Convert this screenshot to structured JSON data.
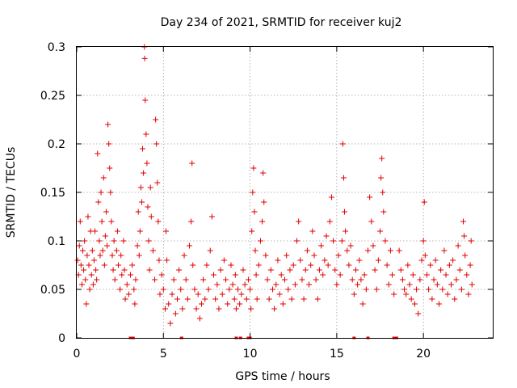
{
  "chart_data": {
    "type": "scatter",
    "title": "Day 234 of 2021, SRMTID for receiver kuj2",
    "xlabel": "GPS time / hours",
    "ylabel": "SRMTID / TECUs",
    "xlim": [
      0,
      24
    ],
    "ylim": [
      0,
      0.3
    ],
    "x_ticks": [
      0,
      5,
      10,
      15,
      20
    ],
    "x_tick_labels": [
      "0",
      "5",
      "10",
      "15",
      "20"
    ],
    "y_ticks": [
      0,
      0.05,
      0.1,
      0.15,
      0.2,
      0.25,
      0.3
    ],
    "y_tick_labels": [
      "0",
      "0.05",
      "0.1",
      "0.15",
      "0.2",
      "0.25",
      "0.3"
    ],
    "grid": true,
    "marker": "plus",
    "color": "#e00000",
    "series": [
      {
        "name": "SRMTID",
        "points": [
          [
            0.05,
            0.08
          ],
          [
            0.1,
            0.065
          ],
          [
            0.15,
            0.095
          ],
          [
            0.2,
            0.12
          ],
          [
            0.25,
            0.075
          ],
          [
            0.3,
            0.055
          ],
          [
            0.35,
            0.09
          ],
          [
            0.4,
            0.07
          ],
          [
            0.45,
            0.1
          ],
          [
            0.5,
            0.06
          ],
          [
            0.55,
            0.035
          ],
          [
            0.6,
            0.085
          ],
          [
            0.65,
            0.125
          ],
          [
            0.7,
            0.075
          ],
          [
            0.75,
            0.05
          ],
          [
            0.8,
            0.11
          ],
          [
            0.85,
            0.065
          ],
          [
            0.9,
            0.09
          ],
          [
            0.95,
            0.055
          ],
          [
            1.0,
            0.08
          ],
          [
            1.05,
            0.11
          ],
          [
            1.1,
            0.07
          ],
          [
            1.15,
            0.06
          ],
          [
            1.2,
            0.19
          ],
          [
            1.25,
            0.14
          ],
          [
            1.3,
            0.1
          ],
          [
            1.35,
            0.085
          ],
          [
            1.4,
            0.15
          ],
          [
            1.45,
            0.12
          ],
          [
            1.5,
            0.09
          ],
          [
            1.55,
            0.165
          ],
          [
            1.6,
            0.075
          ],
          [
            1.65,
            0.105
          ],
          [
            1.7,
            0.13
          ],
          [
            1.75,
            0.095
          ],
          [
            1.8,
            0.22
          ],
          [
            1.85,
            0.2
          ],
          [
            1.9,
            0.175
          ],
          [
            1.95,
            0.15
          ],
          [
            2.0,
            0.12
          ],
          [
            2.05,
            0.085
          ],
          [
            2.1,
            0.07
          ],
          [
            2.15,
            0.1
          ],
          [
            2.2,
            0.06
          ],
          [
            2.3,
            0.09
          ],
          [
            2.35,
            0.11
          ],
          [
            2.4,
            0.075
          ],
          [
            2.5,
            0.05
          ],
          [
            2.55,
            0.085
          ],
          [
            2.6,
            0.065
          ],
          [
            2.7,
            0.1
          ],
          [
            2.75,
            0.07
          ],
          [
            2.8,
            0.04
          ],
          [
            2.9,
            0.055
          ],
          [
            3.0,
            0.045
          ],
          [
            3.1,
            0.065
          ],
          [
            3.2,
            0.075
          ],
          [
            3.3,
            0.05
          ],
          [
            3.35,
            0.035
          ],
          [
            3.4,
            0.06
          ],
          [
            3.5,
            0.095
          ],
          [
            3.55,
            0.13
          ],
          [
            3.6,
            0.085
          ],
          [
            3.65,
            0.11
          ],
          [
            3.7,
            0.155
          ],
          [
            3.75,
            0.14
          ],
          [
            3.8,
            0.195
          ],
          [
            3.85,
            0.17
          ],
          [
            3.9,
            0.3
          ],
          [
            3.92,
            0.288
          ],
          [
            3.95,
            0.245
          ],
          [
            4.0,
            0.21
          ],
          [
            4.05,
            0.18
          ],
          [
            4.1,
            0.135
          ],
          [
            4.15,
            0.1
          ],
          [
            4.2,
            0.07
          ],
          [
            4.25,
            0.155
          ],
          [
            4.3,
            0.125
          ],
          [
            4.4,
            0.09
          ],
          [
            4.5,
            0.06
          ],
          [
            4.55,
            0.225
          ],
          [
            4.6,
            0.2
          ],
          [
            4.65,
            0.16
          ],
          [
            4.7,
            0.12
          ],
          [
            4.75,
            0.08
          ],
          [
            4.8,
            0.045
          ],
          [
            4.9,
            0.065
          ],
          [
            5.0,
            0.05
          ],
          [
            5.1,
            0.03
          ],
          [
            5.15,
            0.11
          ],
          [
            5.2,
            0.08
          ],
          [
            5.3,
            0.035
          ],
          [
            5.4,
            0.015
          ],
          [
            5.5,
            0.045
          ],
          [
            5.6,
            0.06
          ],
          [
            5.7,
            0.025
          ],
          [
            5.8,
            0.04
          ],
          [
            5.9,
            0.07
          ],
          [
            6.0,
            0.05
          ],
          [
            6.1,
            0.03
          ],
          [
            6.2,
            0.085
          ],
          [
            6.3,
            0.06
          ],
          [
            6.4,
            0.04
          ],
          [
            6.5,
            0.095
          ],
          [
            6.6,
            0.12
          ],
          [
            6.65,
            0.18
          ],
          [
            6.7,
            0.075
          ],
          [
            6.8,
            0.05
          ],
          [
            6.9,
            0.03
          ],
          [
            7.0,
            0.045
          ],
          [
            7.1,
            0.02
          ],
          [
            7.2,
            0.035
          ],
          [
            7.3,
            0.06
          ],
          [
            7.4,
            0.04
          ],
          [
            7.5,
            0.075
          ],
          [
            7.6,
            0.05
          ],
          [
            7.7,
            0.09
          ],
          [
            7.8,
            0.125
          ],
          [
            7.9,
            0.065
          ],
          [
            8.0,
            0.04
          ],
          [
            8.1,
            0.055
          ],
          [
            8.2,
            0.03
          ],
          [
            8.3,
            0.07
          ],
          [
            8.4,
            0.045
          ],
          [
            8.5,
            0.08
          ],
          [
            8.6,
            0.06
          ],
          [
            8.7,
            0.035
          ],
          [
            8.8,
            0.05
          ],
          [
            8.9,
            0.075
          ],
          [
            9.0,
            0.055
          ],
          [
            9.1,
            0.04
          ],
          [
            9.15,
            0.065
          ],
          [
            9.2,
            0.03
          ],
          [
            9.3,
            0.05
          ],
          [
            9.4,
            0.035
          ],
          [
            9.5,
            0.045
          ],
          [
            9.6,
            0.07
          ],
          [
            9.7,
            0.055
          ],
          [
            9.8,
            0.04
          ],
          [
            9.9,
            0.06
          ],
          [
            10.0,
            0.05
          ],
          [
            10.05,
            0.03
          ],
          [
            10.1,
            0.11
          ],
          [
            10.15,
            0.15
          ],
          [
            10.2,
            0.175
          ],
          [
            10.25,
            0.13
          ],
          [
            10.3,
            0.09
          ],
          [
            10.35,
            0.065
          ],
          [
            10.4,
            0.04
          ],
          [
            10.5,
            0.075
          ],
          [
            10.6,
            0.1
          ],
          [
            10.7,
            0.12
          ],
          [
            10.75,
            0.17
          ],
          [
            10.8,
            0.14
          ],
          [
            10.9,
            0.085
          ],
          [
            11.0,
            0.06
          ],
          [
            11.1,
            0.04
          ],
          [
            11.2,
            0.07
          ],
          [
            11.3,
            0.05
          ],
          [
            11.4,
            0.03
          ],
          [
            11.5,
            0.055
          ],
          [
            11.6,
            0.08
          ],
          [
            11.7,
            0.045
          ],
          [
            11.8,
            0.065
          ],
          [
            11.9,
            0.035
          ],
          [
            12.0,
            0.06
          ],
          [
            12.1,
            0.085
          ],
          [
            12.2,
            0.05
          ],
          [
            12.3,
            0.07
          ],
          [
            12.4,
            0.04
          ],
          [
            12.5,
            0.075
          ],
          [
            12.6,
            0.055
          ],
          [
            12.7,
            0.1
          ],
          [
            12.8,
            0.12
          ],
          [
            12.9,
            0.08
          ],
          [
            13.0,
            0.06
          ],
          [
            13.1,
            0.04
          ],
          [
            13.2,
            0.07
          ],
          [
            13.3,
            0.09
          ],
          [
            13.4,
            0.055
          ],
          [
            13.5,
            0.075
          ],
          [
            13.6,
            0.11
          ],
          [
            13.7,
            0.085
          ],
          [
            13.8,
            0.06
          ],
          [
            13.9,
            0.04
          ],
          [
            14.0,
            0.07
          ],
          [
            14.1,
            0.095
          ],
          [
            14.2,
            0.065
          ],
          [
            14.3,
            0.08
          ],
          [
            14.4,
            0.105
          ],
          [
            14.5,
            0.075
          ],
          [
            14.6,
            0.12
          ],
          [
            14.7,
            0.145
          ],
          [
            14.8,
            0.1
          ],
          [
            14.9,
            0.07
          ],
          [
            15.0,
            0.055
          ],
          [
            15.1,
            0.085
          ],
          [
            15.2,
            0.065
          ],
          [
            15.3,
            0.1
          ],
          [
            15.35,
            0.2
          ],
          [
            15.4,
            0.165
          ],
          [
            15.45,
            0.13
          ],
          [
            15.5,
            0.11
          ],
          [
            15.6,
            0.09
          ],
          [
            15.7,
            0.075
          ],
          [
            15.8,
            0.095
          ],
          [
            15.9,
            0.06
          ],
          [
            16.0,
            0.045
          ],
          [
            16.1,
            0.07
          ],
          [
            16.2,
            0.055
          ],
          [
            16.3,
            0.08
          ],
          [
            16.4,
            0.06
          ],
          [
            16.5,
            0.035
          ],
          [
            16.6,
            0.065
          ],
          [
            16.7,
            0.05
          ],
          [
            16.8,
            0.09
          ],
          [
            16.9,
            0.145
          ],
          [
            17.0,
            0.12
          ],
          [
            17.1,
            0.095
          ],
          [
            17.2,
            0.07
          ],
          [
            17.3,
            0.05
          ],
          [
            17.4,
            0.08
          ],
          [
            17.5,
            0.11
          ],
          [
            17.55,
            0.165
          ],
          [
            17.6,
            0.185
          ],
          [
            17.65,
            0.15
          ],
          [
            17.7,
            0.13
          ],
          [
            17.8,
            0.1
          ],
          [
            17.9,
            0.075
          ],
          [
            18.0,
            0.055
          ],
          [
            18.1,
            0.09
          ],
          [
            18.2,
            0.065
          ],
          [
            18.3,
            0.045
          ],
          [
            18.6,
            0.09
          ],
          [
            18.7,
            0.07
          ],
          [
            18.8,
            0.06
          ],
          [
            18.9,
            0.05
          ],
          [
            19.0,
            0.045
          ],
          [
            19.1,
            0.075
          ],
          [
            19.2,
            0.055
          ],
          [
            19.3,
            0.04
          ],
          [
            19.4,
            0.065
          ],
          [
            19.5,
            0.035
          ],
          [
            19.6,
            0.05
          ],
          [
            19.7,
            0.025
          ],
          [
            19.8,
            0.06
          ],
          [
            19.9,
            0.08
          ],
          [
            20.0,
            0.1
          ],
          [
            20.05,
            0.14
          ],
          [
            20.1,
            0.085
          ],
          [
            20.2,
            0.065
          ],
          [
            20.3,
            0.05
          ],
          [
            20.4,
            0.075
          ],
          [
            20.5,
            0.04
          ],
          [
            20.6,
            0.06
          ],
          [
            20.7,
            0.08
          ],
          [
            20.8,
            0.055
          ],
          [
            20.9,
            0.035
          ],
          [
            21.0,
            0.07
          ],
          [
            21.1,
            0.05
          ],
          [
            21.2,
            0.09
          ],
          [
            21.3,
            0.065
          ],
          [
            21.4,
            0.045
          ],
          [
            21.5,
            0.075
          ],
          [
            21.6,
            0.055
          ],
          [
            21.7,
            0.08
          ],
          [
            21.8,
            0.04
          ],
          [
            21.9,
            0.06
          ],
          [
            22.0,
            0.095
          ],
          [
            22.1,
            0.07
          ],
          [
            22.2,
            0.05
          ],
          [
            22.3,
            0.12
          ],
          [
            22.35,
            0.105
          ],
          [
            22.4,
            0.085
          ],
          [
            22.5,
            0.065
          ],
          [
            22.6,
            0.045
          ],
          [
            22.7,
            0.075
          ],
          [
            22.75,
            0.1
          ],
          [
            22.8,
            0.055
          ]
        ]
      }
    ],
    "gap_markers_x": [
      3.1,
      3.25,
      6.05,
      9.2,
      9.45,
      9.9,
      10.0,
      16.0,
      16.8,
      18.3,
      18.45
    ]
  }
}
